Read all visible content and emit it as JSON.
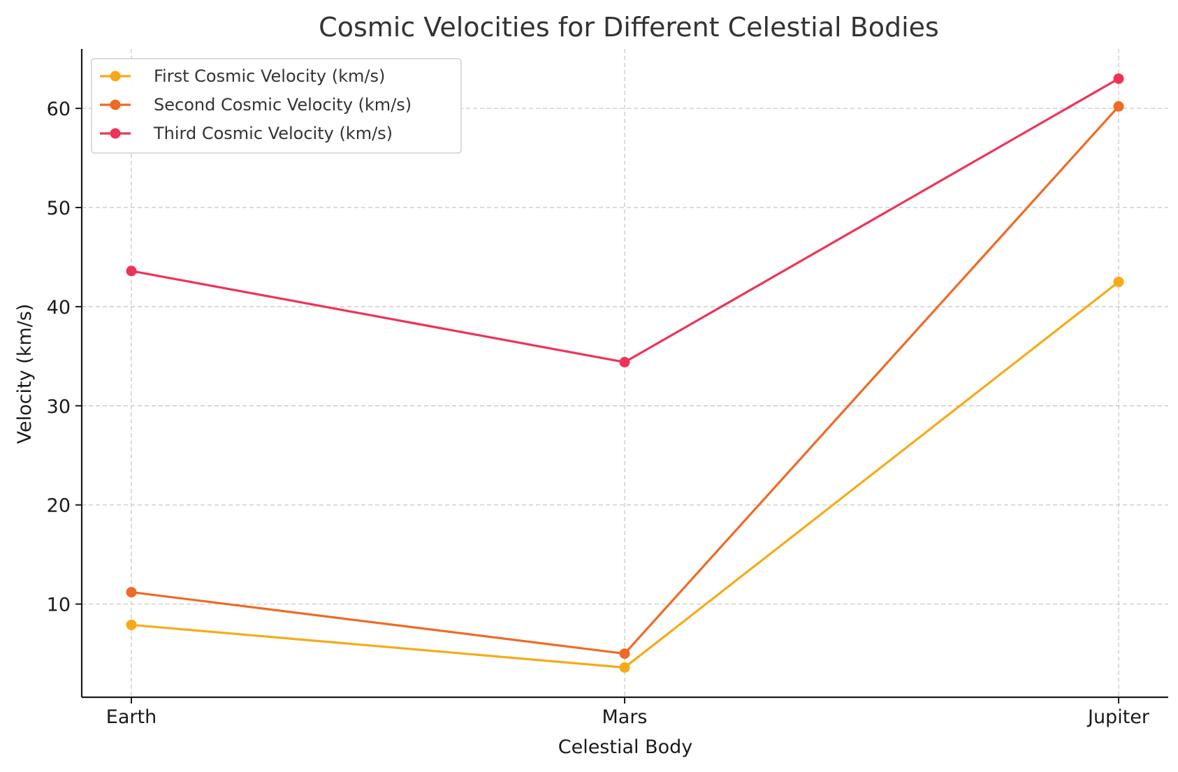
{
  "chart_data": {
    "type": "line",
    "title": "Cosmic Velocities for Different Celestial Bodies",
    "xlabel": "Celestial Body",
    "ylabel": "Velocity (km/s)",
    "categories": [
      "Earth",
      "Mars",
      "Jupiter"
    ],
    "ylim": [
      0.6,
      66.0
    ],
    "yticks": [
      10,
      20,
      30,
      40,
      50,
      60
    ],
    "grid": true,
    "legend_position": "upper-left",
    "series": [
      {
        "name": "First Cosmic Velocity (km/s)",
        "color": "#F7AA17",
        "values": [
          7.9,
          3.6,
          42.5
        ]
      },
      {
        "name": "Second Cosmic Velocity (km/s)",
        "color": "#EF6A24",
        "values": [
          11.2,
          5.0,
          60.2
        ]
      },
      {
        "name": "Third Cosmic Velocity (km/s)",
        "color": "#EE3358",
        "values": [
          43.6,
          34.4,
          63.0
        ]
      }
    ]
  }
}
